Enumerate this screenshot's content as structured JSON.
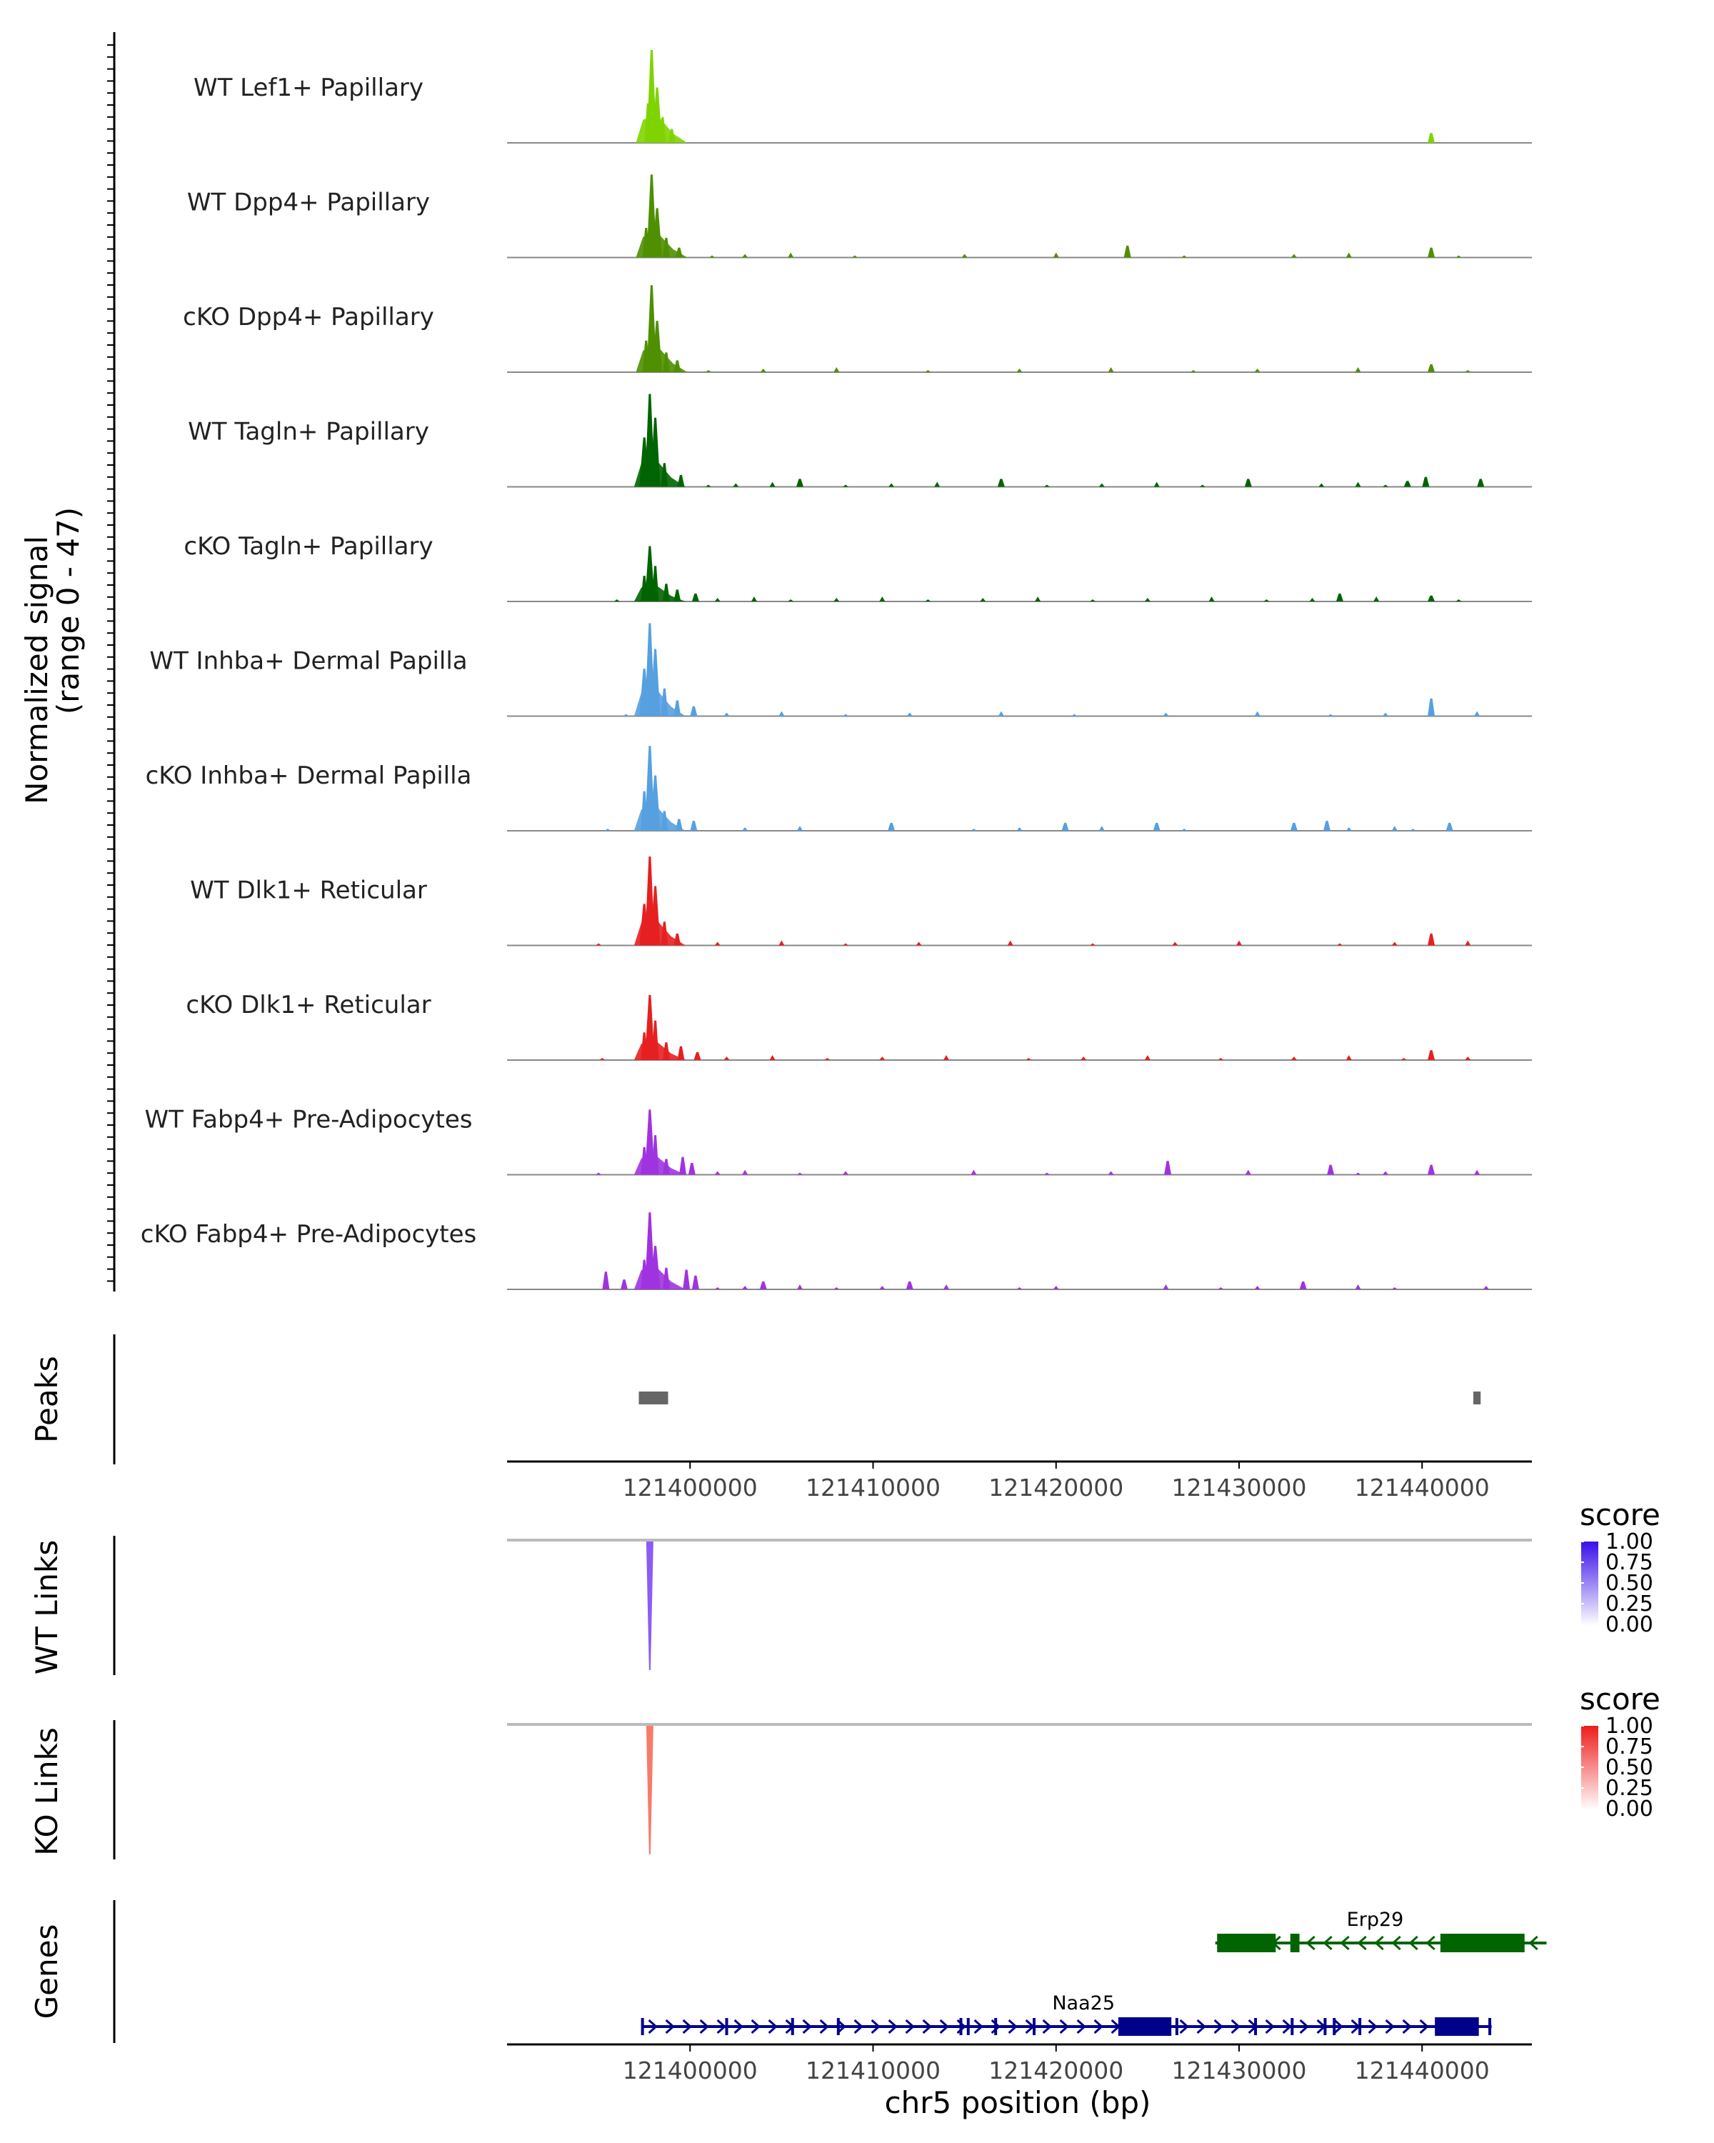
{
  "chart_data": {
    "type": "area",
    "title": "",
    "xlabel": "chr5 position (bp)",
    "xlim": [
      121390000,
      121446000
    ],
    "x_ticks": [
      121400000,
      121410000,
      121420000,
      121430000,
      121440000
    ],
    "x_tick_labels": [
      "121400000",
      "121410000",
      "121420000",
      "121430000",
      "121440000"
    ],
    "coverage": {
      "ylabel_line1": "Normalized signal",
      "ylabel_line2": "(range 0 - 47)",
      "yrange": [
        0,
        47
      ],
      "tracks": [
        {
          "label": "WT Lef1+ Papillary",
          "color": "#7fd400",
          "peaks": [
            [
              121397900,
              47
            ],
            [
              121398200,
              28
            ],
            [
              121397700,
              20
            ],
            [
              121398500,
              13
            ],
            [
              121399000,
              7
            ],
            [
              121440500,
              5
            ]
          ],
          "small": []
        },
        {
          "label": "WT Dpp4+ Papillary",
          "color": "#4f8f00",
          "peaks": [
            [
              121397900,
              42
            ],
            [
              121398200,
              25
            ],
            [
              121397600,
              15
            ],
            [
              121398700,
              10
            ],
            [
              121399400,
              5
            ],
            [
              121423900,
              6
            ],
            [
              121440500,
              5
            ]
          ],
          "small": [
            121401200,
            121403000,
            121405500,
            121409000,
            121415000,
            121420000,
            121427000,
            121433000,
            121436000,
            121442000
          ]
        },
        {
          "label": "cKO Dpp4+ Papillary",
          "color": "#4f8f00",
          "peaks": [
            [
              121397900,
              44
            ],
            [
              121398200,
              26
            ],
            [
              121397600,
              16
            ],
            [
              121398700,
              10
            ],
            [
              121399300,
              6
            ],
            [
              121440500,
              4
            ]
          ],
          "small": [
            121401000,
            121404000,
            121408000,
            121413000,
            121418000,
            121423000,
            121427500,
            121431000,
            121436500,
            121442500
          ]
        },
        {
          "label": "WT Tagln+ Papillary",
          "color": "#006400",
          "peaks": [
            [
              121397800,
              47
            ],
            [
              121398100,
              35
            ],
            [
              121397500,
              25
            ],
            [
              121398600,
              12
            ],
            [
              121399500,
              6
            ],
            [
              121406000,
              4
            ],
            [
              121417000,
              4
            ],
            [
              121430500,
              4
            ],
            [
              121440200,
              5
            ],
            [
              121439200,
              3
            ],
            [
              121443200,
              4
            ]
          ],
          "small": [
            121401000,
            121402500,
            121404500,
            121408500,
            121411000,
            121413500,
            121419500,
            121422500,
            121425500,
            121428000,
            121434500,
            121436500,
            121438000
          ]
        },
        {
          "label": "cKO Tagln+ Papillary",
          "color": "#006400",
          "peaks": [
            [
              121397800,
              28
            ],
            [
              121398100,
              18
            ],
            [
              121397500,
              13
            ],
            [
              121398700,
              9
            ],
            [
              121399300,
              6
            ],
            [
              121400300,
              4
            ],
            [
              121435500,
              4
            ],
            [
              121440500,
              3
            ]
          ],
          "small": [
            121396000,
            121401500,
            121403500,
            121405500,
            121408000,
            121410500,
            121413000,
            121416000,
            121419000,
            121422000,
            121425000,
            121428500,
            121431500,
            121434000,
            121437500,
            121442000
          ]
        },
        {
          "label": "WT Inhba+ Dermal Papilla",
          "color": "#56a0e0",
          "peaks": [
            [
              121397800,
              47
            ],
            [
              121398100,
              34
            ],
            [
              121397500,
              24
            ],
            [
              121398600,
              14
            ],
            [
              121399300,
              8
            ],
            [
              121400200,
              5
            ],
            [
              121440500,
              9
            ]
          ],
          "small": [
            121396500,
            121402000,
            121405000,
            121408500,
            121412000,
            121417000,
            121421000,
            121426000,
            121431000,
            121435000,
            121438000,
            121443000
          ]
        },
        {
          "label": "cKO Inhba+ Dermal Papilla",
          "color": "#56a0e0",
          "peaks": [
            [
              121397800,
              43
            ],
            [
              121398100,
              28
            ],
            [
              121397500,
              20
            ],
            [
              121398600,
              10
            ],
            [
              121399400,
              6
            ],
            [
              121400200,
              5
            ],
            [
              121411000,
              4
            ],
            [
              121420500,
              4
            ],
            [
              121425500,
              4
            ],
            [
              121433000,
              4
            ],
            [
              121434800,
              5
            ],
            [
              121441500,
              4
            ]
          ],
          "small": [
            121395500,
            121403000,
            121406000,
            121415500,
            121418000,
            121422500,
            121427000,
            121436000,
            121438500,
            121439500
          ]
        },
        {
          "label": "WT Dlk1+ Reticular",
          "color": "#e62020",
          "peaks": [
            [
              121397800,
              45
            ],
            [
              121398100,
              30
            ],
            [
              121397500,
              21
            ],
            [
              121398600,
              12
            ],
            [
              121399300,
              6
            ],
            [
              121440500,
              6
            ]
          ],
          "small": [
            121395000,
            121401500,
            121405000,
            121408500,
            121412500,
            121417500,
            121422000,
            121426500,
            121430000,
            121435500,
            121438500,
            121442500
          ]
        },
        {
          "label": "cKO Dlk1+ Reticular",
          "color": "#e62020",
          "peaks": [
            [
              121397800,
              33
            ],
            [
              121398100,
              20
            ],
            [
              121397500,
              14
            ],
            [
              121398700,
              9
            ],
            [
              121399500,
              7
            ],
            [
              121400400,
              4
            ],
            [
              121440500,
              5
            ]
          ],
          "small": [
            121395200,
            121402000,
            121404500,
            121407500,
            121410500,
            121414000,
            121418500,
            121421500,
            121425000,
            121429000,
            121433000,
            121436000,
            121439000,
            121442500
          ]
        },
        {
          "label": "WT Fabp4+ Pre-Adipocytes",
          "color": "#a033e0",
          "peaks": [
            [
              121397800,
              33
            ],
            [
              121398100,
              20
            ],
            [
              121397500,
              14
            ],
            [
              121398700,
              8
            ],
            [
              121399600,
              9
            ],
            [
              121400100,
              6
            ],
            [
              121426100,
              7
            ],
            [
              121435000,
              5
            ],
            [
              121440500,
              5
            ]
          ],
          "small": [
            121395000,
            121401500,
            121403000,
            121406000,
            121408500,
            121415500,
            121419500,
            121423000,
            121430500,
            121436500,
            121438000,
            121443000
          ]
        },
        {
          "label": "cKO Fabp4+ Pre-Adipocytes",
          "color": "#a033e0",
          "peaks": [
            [
              121397800,
              39
            ],
            [
              121398100,
              22
            ],
            [
              121397500,
              15
            ],
            [
              121398700,
              11
            ],
            [
              121399800,
              10
            ],
            [
              121400300,
              7
            ],
            [
              121395400,
              9
            ],
            [
              121396400,
              5
            ],
            [
              121404000,
              4
            ],
            [
              121412000,
              4
            ],
            [
              121433500,
              4
            ]
          ],
          "small": [
            121401500,
            121403000,
            121406000,
            121408000,
            121410500,
            121414000,
            121418000,
            121420000,
            121426000,
            121429000,
            121431000,
            121436500,
            121438500,
            121443500
          ]
        }
      ]
    },
    "peaks_track": {
      "label": "Peaks",
      "regions": [
        [
          121397200,
          121398800
        ],
        [
          121442800,
          121443200
        ]
      ]
    },
    "links": [
      {
        "label": "WT Links",
        "color": "#8b5cf6",
        "anchor": 121397800,
        "legend_title": "score",
        "legend_ticks": [
          "1.00",
          "0.75",
          "0.50",
          "0.25",
          "0.00"
        ],
        "legend_colors": [
          "#ffffff",
          "#3a10e8"
        ]
      },
      {
        "label": "KO Links",
        "color": "#f87b6a",
        "anchor": 121397800,
        "legend_title": "score",
        "legend_ticks": [
          "1.00",
          "0.75",
          "0.50",
          "0.25",
          "0.00"
        ],
        "legend_colors": [
          "#ffffff",
          "#ee1c1c"
        ]
      }
    ],
    "genes": {
      "label": "Genes",
      "items": [
        {
          "name": "Erp29",
          "color": "#006400",
          "strand": "-",
          "start": 121428700,
          "end": 121446800,
          "exons": [
            [
              121428800,
              121432000
            ],
            [
              121432800,
              121433300
            ],
            [
              121441000,
              121445600
            ]
          ]
        },
        {
          "name": "Naa25",
          "color": "#00008b",
          "strand": "+",
          "start": 121397400,
          "end": 121443800,
          "exons": [
            [
              121423400,
              121426300
            ],
            [
              121440700,
              121443100
            ]
          ],
          "markers": [
            121397400,
            121402000,
            121405600,
            121408100,
            121414800,
            121415200,
            121416700,
            121418800,
            121426600,
            121430900,
            121432900,
            121434700,
            121435200,
            121436600,
            121443700
          ]
        }
      ]
    }
  }
}
